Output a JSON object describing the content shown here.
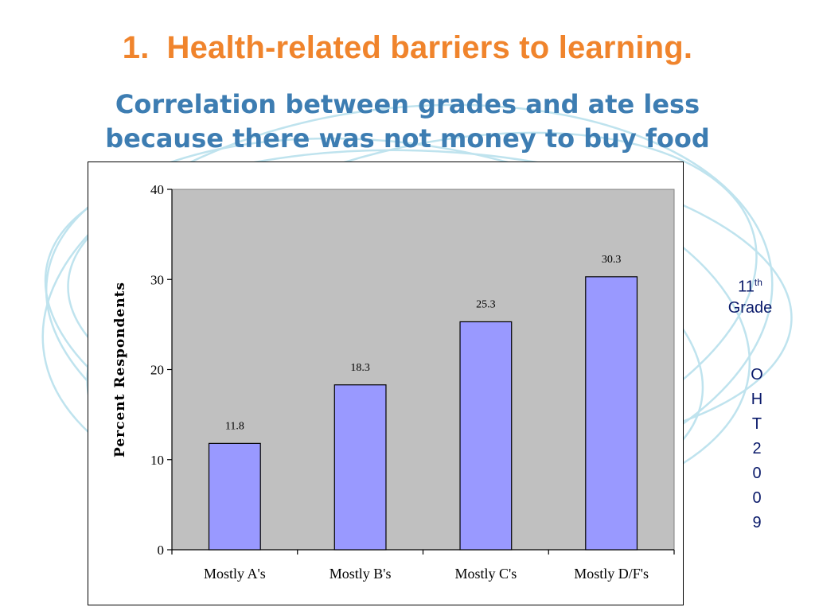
{
  "slide": {
    "heading_number": "1.",
    "heading_text": "Health-related barriers to learning.",
    "subtitle_line1": "Correlation between grades and ate less",
    "subtitle_line2": "because there was not money to buy food",
    "grade_number": "11",
    "grade_suffix": "th",
    "grade_word": "Grade",
    "vertical_code": [
      "O",
      "H",
      "T",
      "2",
      "0",
      "0",
      "9"
    ]
  },
  "chart_data": {
    "type": "bar",
    "categories": [
      "Mostly A's",
      "Mostly B's",
      "Mostly C's",
      "Mostly D/F's"
    ],
    "values": [
      11.8,
      18.3,
      25.3,
      30.3
    ],
    "data_labels": [
      "11.8",
      "18.3",
      "25.3",
      "30.3"
    ],
    "ylabel": "Percent Respondents",
    "ylim": [
      0,
      40
    ],
    "yticks": [
      0,
      10,
      20,
      30,
      40
    ],
    "grid": false,
    "colors": {
      "bar": "#9999ff",
      "plot_bg": "#c0c0c0",
      "bar_stroke": "#000000"
    }
  }
}
